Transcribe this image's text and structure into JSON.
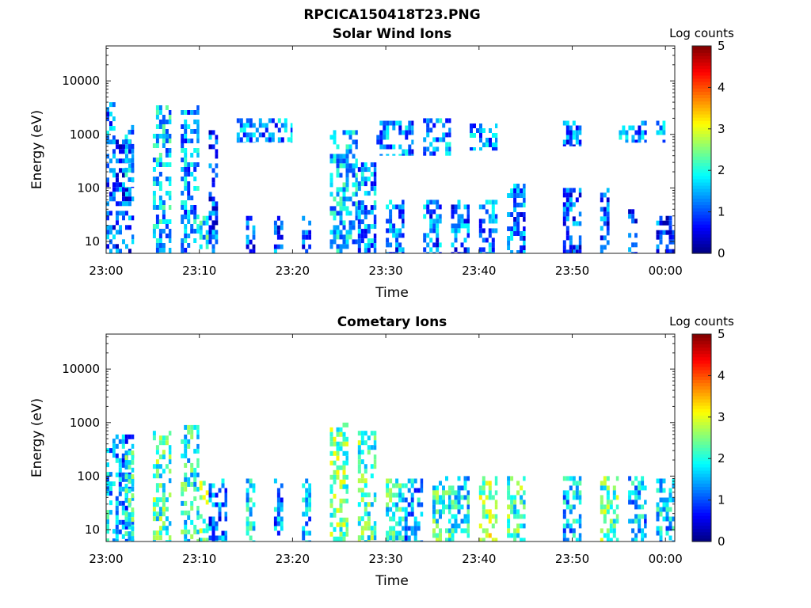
{
  "figure": {
    "title": "RPCICA150418T23.PNG"
  },
  "colorbar": {
    "label": "Log counts",
    "range": [
      0,
      5
    ],
    "ticks": [
      "0",
      "1",
      "2",
      "3",
      "4",
      "5"
    ]
  },
  "chart_data": [
    {
      "type": "heatmap",
      "title": "Solar Wind Ions",
      "xlabel": "Time",
      "ylabel": "Energy (eV)",
      "y_scale": "log",
      "ylim": [
        6,
        45000
      ],
      "xlim": [
        "23:00",
        "00:01"
      ],
      "x_ticks": [
        "23:00",
        "23:10",
        "23:20",
        "23:30",
        "23:40",
        "23:50",
        "00:00"
      ],
      "y_ticks": [
        "10",
        "100",
        "1000",
        "10000"
      ],
      "value_label": "Log counts",
      "value_range": [
        0,
        5
      ],
      "bursts": [
        {
          "t0": "23:00",
          "t1": "23:01",
          "emin": 700,
          "emax": 4000,
          "level": 1.2
        },
        {
          "t0": "23:00",
          "t1": "23:03",
          "emin": 6,
          "emax": 800,
          "level": 1.0
        },
        {
          "t0": "23:02",
          "t1": "23:03",
          "emin": 100,
          "emax": 1500,
          "level": 1.4
        },
        {
          "t0": "23:05",
          "t1": "23:07",
          "emin": 6,
          "emax": 3500,
          "level": 1.6
        },
        {
          "t0": "23:08",
          "t1": "23:10",
          "emin": 6,
          "emax": 3500,
          "level": 1.4
        },
        {
          "t0": "23:10",
          "t1": "23:11",
          "emin": 6,
          "emax": 30,
          "level": 1.8
        },
        {
          "t0": "23:11",
          "t1": "23:12",
          "emin": 6,
          "emax": 1200,
          "level": 1.0
        },
        {
          "t0": "23:14",
          "t1": "23:20",
          "emin": 700,
          "emax": 2000,
          "level": 1.3
        },
        {
          "t0": "23:15",
          "t1": "23:16",
          "emin": 6,
          "emax": 30,
          "level": 1.0
        },
        {
          "t0": "23:18",
          "t1": "23:19",
          "emin": 6,
          "emax": 30,
          "level": 1.0
        },
        {
          "t0": "23:21",
          "t1": "23:22",
          "emin": 6,
          "emax": 30,
          "level": 1.0
        },
        {
          "t0": "23:24",
          "t1": "23:27",
          "emin": 6,
          "emax": 1200,
          "level": 1.6
        },
        {
          "t0": "23:27",
          "t1": "23:29",
          "emin": 6,
          "emax": 300,
          "level": 1.3
        },
        {
          "t0": "23:29",
          "t1": "23:33",
          "emin": 400,
          "emax": 1800,
          "level": 1.3
        },
        {
          "t0": "23:30",
          "t1": "23:32",
          "emin": 6,
          "emax": 60,
          "level": 1.2
        },
        {
          "t0": "23:34",
          "t1": "23:37",
          "emin": 400,
          "emax": 2000,
          "level": 1.4
        },
        {
          "t0": "23:34",
          "t1": "23:36",
          "emin": 6,
          "emax": 60,
          "level": 1.2
        },
        {
          "t0": "23:37",
          "t1": "23:39",
          "emin": 6,
          "emax": 60,
          "level": 1.1
        },
        {
          "t0": "23:39",
          "t1": "23:42",
          "emin": 500,
          "emax": 1600,
          "level": 1.3
        },
        {
          "t0": "23:40",
          "t1": "23:42",
          "emin": 6,
          "emax": 60,
          "level": 1.3
        },
        {
          "t0": "23:43",
          "t1": "23:45",
          "emin": 6,
          "emax": 120,
          "level": 1.2
        },
        {
          "t0": "23:49",
          "t1": "23:51",
          "emin": 600,
          "emax": 1800,
          "level": 1.1
        },
        {
          "t0": "23:49",
          "t1": "23:51",
          "emin": 6,
          "emax": 100,
          "level": 1.0
        },
        {
          "t0": "23:53",
          "t1": "23:54",
          "emin": 6,
          "emax": 100,
          "level": 1.0
        },
        {
          "t0": "23:55",
          "t1": "23:58",
          "emin": 700,
          "emax": 1800,
          "level": 1.2
        },
        {
          "t0": "23:56",
          "t1": "23:57",
          "emin": 6,
          "emax": 40,
          "level": 1.0
        },
        {
          "t0": "23:59",
          "t1": "00:00",
          "emin": 700,
          "emax": 1800,
          "level": 1.3
        },
        {
          "t0": "23:59",
          "t1": "00:01",
          "emin": 6,
          "emax": 30,
          "level": 0.9
        }
      ]
    },
    {
      "type": "heatmap",
      "title": "Cometary Ions",
      "xlabel": "Time",
      "ylabel": "Energy (eV)",
      "y_scale": "log",
      "ylim": [
        6,
        45000
      ],
      "xlim": [
        "23:00",
        "00:01"
      ],
      "x_ticks": [
        "23:00",
        "23:10",
        "23:20",
        "23:30",
        "23:40",
        "23:50",
        "00:00"
      ],
      "y_ticks": [
        "10",
        "100",
        "1000",
        "10000"
      ],
      "value_label": "Log counts",
      "value_range": [
        0,
        5
      ],
      "bursts": [
        {
          "t0": "23:00",
          "t1": "23:01",
          "emin": 6,
          "emax": 500,
          "level": 1.6
        },
        {
          "t0": "23:01",
          "t1": "23:03",
          "emin": 6,
          "emax": 600,
          "level": 1.3
        },
        {
          "t0": "23:02",
          "t1": "23:03",
          "emin": 6,
          "emax": 300,
          "level": 2.1
        },
        {
          "t0": "23:05",
          "t1": "23:07",
          "emin": 6,
          "emax": 700,
          "level": 2.2
        },
        {
          "t0": "23:08",
          "t1": "23:10",
          "emin": 6,
          "emax": 900,
          "level": 2.0
        },
        {
          "t0": "23:10",
          "t1": "23:11",
          "emin": 6,
          "emax": 100,
          "level": 2.5
        },
        {
          "t0": "23:11",
          "t1": "23:13",
          "emin": 6,
          "emax": 90,
          "level": 1.2
        },
        {
          "t0": "23:15",
          "t1": "23:16",
          "emin": 6,
          "emax": 90,
          "level": 1.7
        },
        {
          "t0": "23:18",
          "t1": "23:19",
          "emin": 6,
          "emax": 90,
          "level": 1.3
        },
        {
          "t0": "23:21",
          "t1": "23:22",
          "emin": 6,
          "emax": 90,
          "level": 1.4
        },
        {
          "t0": "23:24",
          "t1": "23:26",
          "emin": 6,
          "emax": 1000,
          "level": 2.4
        },
        {
          "t0": "23:27",
          "t1": "23:29",
          "emin": 6,
          "emax": 700,
          "level": 2.2
        },
        {
          "t0": "23:30",
          "t1": "23:32",
          "emin": 6,
          "emax": 90,
          "level": 2.0
        },
        {
          "t0": "23:32",
          "t1": "23:34",
          "emin": 6,
          "emax": 90,
          "level": 1.4
        },
        {
          "t0": "23:35",
          "t1": "23:37",
          "emin": 6,
          "emax": 100,
          "level": 2.1
        },
        {
          "t0": "23:37",
          "t1": "23:39",
          "emin": 6,
          "emax": 100,
          "level": 1.8
        },
        {
          "t0": "23:40",
          "t1": "23:42",
          "emin": 6,
          "emax": 100,
          "level": 2.6
        },
        {
          "t0": "23:43",
          "t1": "23:45",
          "emin": 6,
          "emax": 100,
          "level": 2.2
        },
        {
          "t0": "23:49",
          "t1": "23:51",
          "emin": 6,
          "emax": 100,
          "level": 1.6
        },
        {
          "t0": "23:53",
          "t1": "23:55",
          "emin": 6,
          "emax": 100,
          "level": 2.3
        },
        {
          "t0": "23:56",
          "t1": "23:58",
          "emin": 6,
          "emax": 100,
          "level": 1.5
        },
        {
          "t0": "23:59",
          "t1": "00:01",
          "emin": 6,
          "emax": 90,
          "level": 1.6
        }
      ]
    }
  ]
}
